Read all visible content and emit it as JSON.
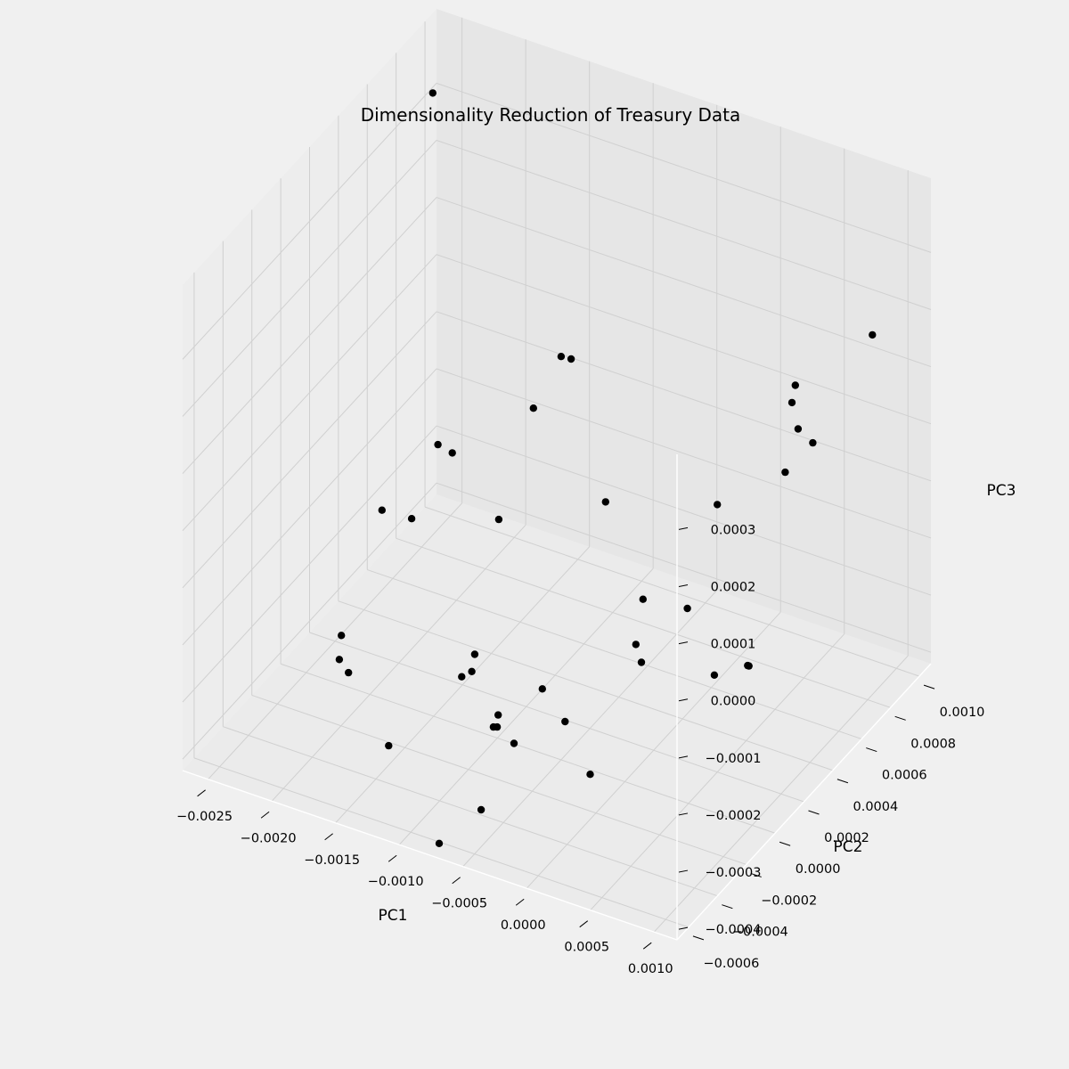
{
  "chart_data": {
    "type": "scatter",
    "projection": "3d",
    "title": "Dimensionality Reduction of Treasury Data",
    "xlabel": "PC1",
    "ylabel": "PC2",
    "zlabel": "PC3",
    "xlim": [
      -0.0027,
      0.00118
    ],
    "ylim": [
      -0.00068,
      0.00108
    ],
    "zlim": [
      -0.00042,
      0.00043
    ],
    "x_ticks": [
      "−0.0025",
      "−0.0020",
      "−0.0015",
      "−0.0010",
      "−0.0005",
      "0.0000",
      "0.0005",
      "0.0010"
    ],
    "y_ticks": [
      "−0.0006",
      "−0.0004",
      "−0.0002",
      "0.0000",
      "0.0002",
      "0.0004",
      "0.0006",
      "0.0008",
      "0.0010"
    ],
    "z_ticks": [
      "−0.0004",
      "−0.0003",
      "−0.0002",
      "−0.0001",
      "0.0000",
      "0.0001",
      "0.0002",
      "0.0003"
    ],
    "grid": true,
    "marker_color": "#000000",
    "pane_colors": {
      "floor": "#ebebeb",
      "back": "#e6e6e6",
      "side": "#ededed",
      "grid": "#d0d0d0"
    },
    "points": [
      {
        "x": -0.00248,
        "y": 0.00086,
        "z": 0.00036
      },
      {
        "x": -0.00102,
        "y": 0.00046,
        "z": 0.00012
      },
      {
        "x": -0.00101,
        "y": 0.00052,
        "z": 0.0001
      },
      {
        "x": -0.00109,
        "y": 0.00033,
        "z": 6e-05
      },
      {
        "x": -0.001,
        "y": 1e-05,
        "z": -4e-05
      },
      {
        "x": -0.00158,
        "y": 0.0002,
        "z": -2e-05
      },
      {
        "x": -0.00165,
        "y": -2e-05,
        "z": -8e-05
      },
      {
        "x": -0.00193,
        "y": 0.00041,
        "z": -9e-05
      },
      {
        "x": -0.00203,
        "y": 0.00011,
        "z": -0.00013
      },
      {
        "x": -0.00049,
        "y": 0.0003,
        "z": -5e-05
      },
      {
        "x": 0.00016,
        "y": 0.0005,
        "z": -6e-05
      },
      {
        "x": 0.00041,
        "y": 0.00082,
        "z": 8e-05
      },
      {
        "x": 0.00097,
        "y": 0.00086,
        "z": 0.0002
      },
      {
        "x": 0.00076,
        "y": 0.00053,
        "z": 0.00011
      },
      {
        "x": 0.00061,
        "y": 0.00062,
        "z": 0.00012
      },
      {
        "x": 0.00083,
        "y": 0.00057,
        "z": 8e-05
      },
      {
        "x": 0.00067,
        "y": 0.00052,
        "z": 3e-05
      },
      {
        "x": -0.00103,
        "y": -0.00013,
        "z": -0.00024
      },
      {
        "x": -0.00181,
        "y": -0.00038,
        "z": -0.00024
      },
      {
        "x": -0.00111,
        "y": -0.00015,
        "z": -0.00028
      },
      {
        "x": -0.00111,
        "y": -8e-05,
        "z": -0.00029
      },
      {
        "x": -0.00193,
        "y": -0.00026,
        "z": -0.00024
      },
      {
        "x": -0.00184,
        "y": -0.00029,
        "z": -0.00029
      },
      {
        "x": -0.00123,
        "y": -0.00055,
        "z": -0.0003
      },
      {
        "x": -0.00077,
        "y": -0.00023,
        "z": -0.00032
      },
      {
        "x": -0.00056,
        "y": -0.00039,
        "z": -0.00026
      },
      {
        "x": -0.00062,
        "y": -0.00033,
        "z": -0.00026
      },
      {
        "x": -0.00062,
        "y": -0.00022,
        "z": -0.00034
      },
      {
        "x": -0.0005,
        "y": -0.00013,
        "z": -0.00026
      },
      {
        "x": -6e-05,
        "y": 0.00013,
        "z": -0.00022
      },
      {
        "x": -0.00031,
        "y": -0.00014,
        "z": -0.0003
      },
      {
        "x": 4e-05,
        "y": 8e-05,
        "z": -0.00023
      },
      {
        "x": -0.00014,
        "y": 0.00025,
        "z": -0.00018
      },
      {
        "x": 5e-05,
        "y": 0.00039,
        "z": -0.00022
      },
      {
        "x": 0.00042,
        "y": 0.00049,
        "z": -0.00032
      },
      {
        "x": 0.00041,
        "y": 0.00049,
        "z": -0.00032
      },
      {
        "x": 0.00042,
        "y": 0.00025,
        "z": -0.00027
      },
      {
        "x": -9e-05,
        "y": -0.00016,
        "z": -0.00037
      },
      {
        "x": -0.00064,
        "y": -0.00043,
        "z": -0.0004
      },
      {
        "x": -0.0008,
        "y": -0.00058,
        "z": -0.00043
      }
    ]
  }
}
